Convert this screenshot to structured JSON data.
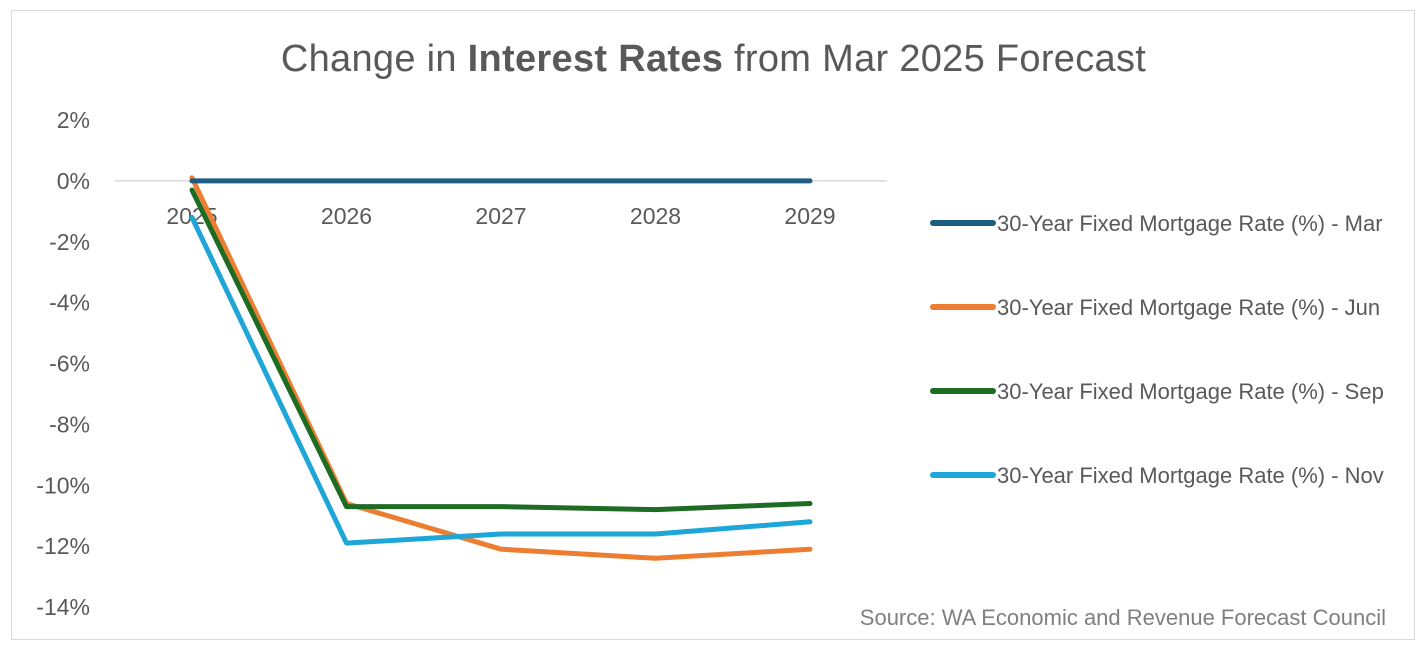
{
  "chart_data": {
    "type": "line",
    "title_parts": {
      "pre": "Change in ",
      "bold": "Interest Rates",
      "post": " from Mar 2025 Forecast"
    },
    "categories": [
      "2025",
      "2026",
      "2027",
      "2028",
      "2029"
    ],
    "y_ticks": [
      "2%",
      "0%",
      "-2%",
      "-4%",
      "-6%",
      "-8%",
      "-10%",
      "-12%",
      "-14%"
    ],
    "ylim": [
      -14,
      2
    ],
    "series": [
      {
        "name": "30-Year Fixed Mortgage Rate (%) - Mar",
        "color": "#1b5e82",
        "values": [
          0,
          0,
          0,
          0,
          0
        ]
      },
      {
        "name": "30-Year Fixed Mortgage Rate (%) - Jun",
        "color": "#ed7d31",
        "values": [
          0.1,
          -10.6,
          -12.1,
          -12.4,
          -12.1
        ]
      },
      {
        "name": "30-Year Fixed Mortgage Rate (%) - Sep",
        "color": "#1e6b23",
        "values": [
          -0.3,
          -10.7,
          -10.7,
          -10.8,
          -10.6
        ]
      },
      {
        "name": "30-Year Fixed Mortgage Rate (%) - Nov",
        "color": "#1ea6d8",
        "values": [
          -1.2,
          -11.9,
          -11.6,
          -11.6,
          -11.2
        ]
      }
    ],
    "source": "Source: WA Economic and Revenue Forecast Council"
  }
}
